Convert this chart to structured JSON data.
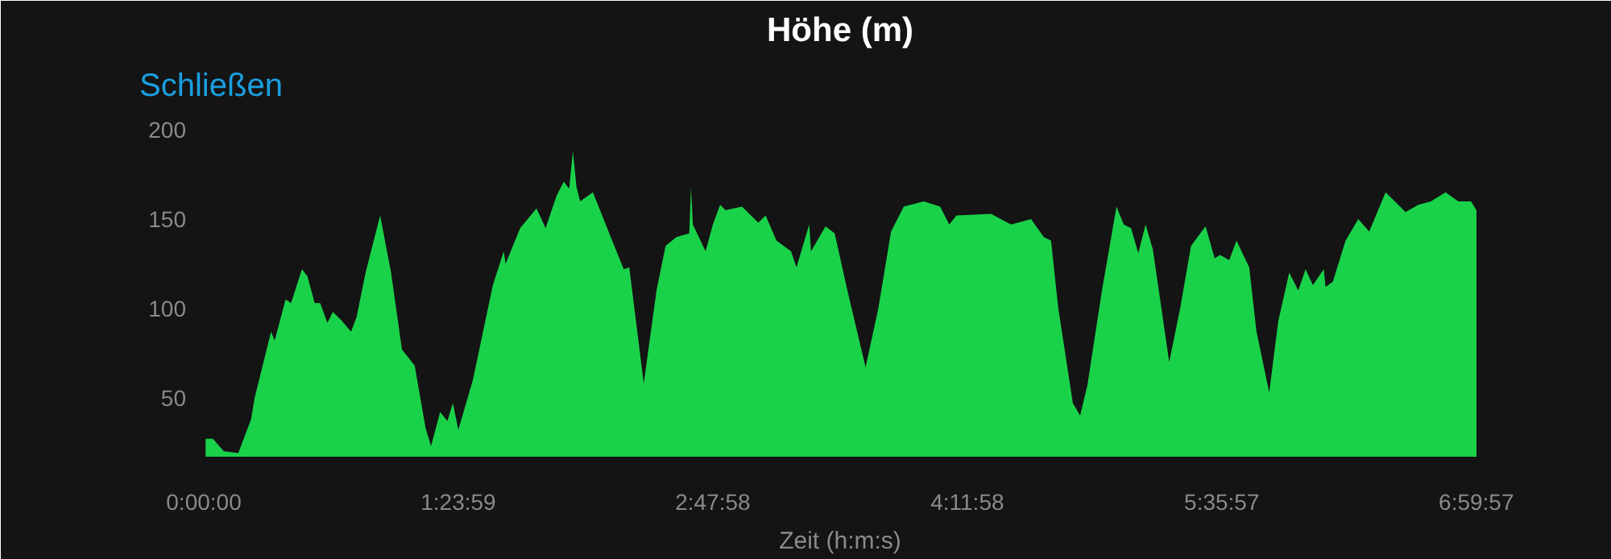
{
  "chart_data": {
    "type": "area",
    "title": "Höhe (m)",
    "xlabel": "Zeit (h:m:s)",
    "annotations": [
      "Schließen"
    ],
    "x": [
      0.01,
      0.05,
      0.11,
      0.19,
      0.26,
      0.28,
      0.37,
      0.39,
      0.45,
      0.48,
      0.54,
      0.57,
      0.61,
      0.64,
      0.68,
      0.71,
      0.76,
      0.81,
      0.84,
      0.89,
      0.97,
      1.03,
      1.09,
      1.16,
      1.22,
      1.25,
      1.3,
      1.34,
      1.37,
      1.4,
      1.48,
      1.59,
      1.65,
      1.66,
      1.74,
      1.83,
      1.88,
      1.94,
      1.98,
      2.01,
      2.03,
      2.05,
      2.07,
      2.14,
      2.16,
      2.25,
      2.27,
      2.31,
      2.34,
      2.42,
      2.49,
      2.54,
      2.6,
      2.67,
      2.68,
      2.69,
      2.76,
      2.8,
      2.84,
      2.87,
      2.96,
      3.05,
      3.09,
      3.15,
      3.23,
      3.26,
      3.33,
      3.34,
      3.42,
      3.47,
      3.54,
      3.64,
      3.71,
      3.78,
      3.85,
      3.96,
      4.05,
      4.1,
      4.14,
      4.33,
      4.44,
      4.55,
      4.62,
      4.66,
      4.7,
      4.78,
      4.82,
      4.86,
      4.94,
      5.02,
      5.06,
      5.1,
      5.14,
      5.18,
      5.22,
      5.31,
      5.37,
      5.43,
      5.51,
      5.56,
      5.59,
      5.64,
      5.68,
      5.75,
      5.79,
      5.86,
      5.91,
      5.97,
      6.02,
      6.06,
      6.1,
      6.16,
      6.17,
      6.21,
      6.28,
      6.35,
      6.41,
      6.5,
      6.61,
      6.68,
      6.75,
      6.83,
      6.9,
      6.97,
      7.0
    ],
    "series": [
      {
        "color": "#1ad24a",
        "values": [
          27,
          27,
          20,
          19,
          38,
          50,
          87,
          82,
          105,
          103,
          122,
          118,
          103,
          103,
          92,
          98,
          93,
          87,
          95,
          120,
          152,
          120,
          77,
          68,
          33,
          23,
          42,
          37,
          47,
          32,
          60,
          113,
          132,
          125,
          145,
          156,
          145,
          163,
          171,
          167,
          188,
          168,
          160,
          165,
          160,
          137,
          132,
          122,
          123,
          58,
          110,
          135,
          140,
          142,
          168,
          147,
          132,
          147,
          158,
          155,
          157,
          148,
          152,
          138,
          132,
          123,
          147,
          132,
          146,
          142,
          110,
          67,
          100,
          143,
          157,
          160,
          157,
          147,
          152,
          153,
          147,
          150,
          140,
          138,
          100,
          47,
          40,
          57,
          110,
          157,
          147,
          145,
          131,
          147,
          133,
          70,
          100,
          135,
          146,
          128,
          130,
          127,
          138,
          123,
          87,
          53,
          93,
          120,
          110,
          122,
          113,
          122,
          112,
          115,
          138,
          150,
          143,
          165,
          154,
          158,
          160,
          165,
          160,
          160,
          155
        ]
      }
    ],
    "xlim": [
      0,
      7.0
    ],
    "ylim": [
      17,
      210
    ],
    "xticks": [
      {
        "value": 0,
        "label": "0:00:00"
      },
      {
        "value": 1.39972,
        "label": "1:23:59"
      },
      {
        "value": 2.79944,
        "label": "2:47:58"
      },
      {
        "value": 4.19944,
        "label": "4:11:58"
      },
      {
        "value": 5.59917,
        "label": "5:35:57"
      },
      {
        "value": 6.99917,
        "label": "6:59:57"
      }
    ],
    "yticks": [
      50,
      100,
      150,
      200
    ],
    "grid": false
  }
}
